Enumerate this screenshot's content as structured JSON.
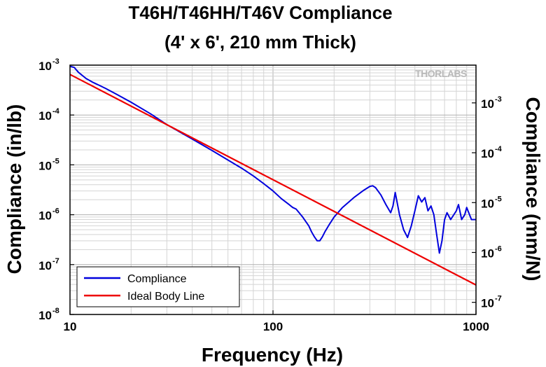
{
  "chart_data": {
    "type": "line",
    "title": "T46H/T46HH/T46V Compliance",
    "subtitle": "(4' x 6', 210 mm Thick)",
    "xlabel": "Frequency (Hz)",
    "ylabel": "Compliance (in/lb)",
    "ylabel_right": "Compliance (mm/N)",
    "x_scale": "log",
    "y_scale": "log",
    "xlim": [
      10,
      1000
    ],
    "ylim": [
      1e-08,
      0.001
    ],
    "grid": true,
    "legend_position": "bottom-left",
    "watermark": "THORLABS",
    "x_ticks": [
      {
        "value": 10,
        "label": "10"
      },
      {
        "value": 100,
        "label": "100"
      },
      {
        "value": 1000,
        "label": "1000"
      }
    ],
    "y_ticks_left": [
      {
        "value": 1e-08,
        "base": "10",
        "exp": "-8"
      },
      {
        "value": 1e-07,
        "base": "10",
        "exp": "-7"
      },
      {
        "value": 1e-06,
        "base": "10",
        "exp": "-6"
      },
      {
        "value": 1e-05,
        "base": "10",
        "exp": "-5"
      },
      {
        "value": 0.0001,
        "base": "10",
        "exp": "-4"
      },
      {
        "value": 0.001,
        "base": "10",
        "exp": "-3"
      }
    ],
    "y_ticks_right": [
      {
        "value": 1e-07,
        "base": "10",
        "exp": "-7"
      },
      {
        "value": 1e-06,
        "base": "10",
        "exp": "-6"
      },
      {
        "value": 1e-05,
        "base": "10",
        "exp": "-5"
      },
      {
        "value": 0.0001,
        "base": "10",
        "exp": "-4"
      },
      {
        "value": 0.001,
        "base": "10",
        "exp": "-3"
      }
    ],
    "right_axis_factor": 5.71,
    "series": [
      {
        "name": "Compliance",
        "color": "#0000dd",
        "x": [
          10,
          10.5,
          11,
          12,
          13,
          14,
          15,
          17,
          20,
          25,
          30,
          40,
          50,
          60,
          70,
          80,
          90,
          100,
          110,
          120,
          125,
          130,
          140,
          150,
          155,
          160,
          165,
          170,
          175,
          180,
          190,
          200,
          220,
          250,
          280,
          300,
          310,
          320,
          340,
          360,
          380,
          390,
          400,
          420,
          440,
          460,
          480,
          500,
          520,
          540,
          560,
          580,
          600,
          620,
          640,
          660,
          680,
          700,
          720,
          750,
          800,
          820,
          850,
          880,
          900,
          950,
          1000
        ],
        "y": [
          0.00095,
          0.0009,
          0.00072,
          0.00054,
          0.00045,
          0.00039,
          0.00034,
          0.00026,
          0.00018,
          0.000105,
          6.4e-05,
          3.3e-05,
          1.95e-05,
          1.25e-05,
          8.6e-06,
          6e-06,
          4.2e-06,
          3e-06,
          2.1e-06,
          1.6e-06,
          1.4e-06,
          1.3e-06,
          9e-07,
          6e-07,
          4.5e-07,
          3.6e-07,
          3e-07,
          3e-07,
          3.6e-07,
          4.5e-07,
          6.5e-07,
          9e-07,
          1.4e-06,
          2.2e-06,
          3.1e-06,
          3.7e-06,
          3.8e-06,
          3.5e-06,
          2.5e-06,
          1.6e-06,
          1.1e-06,
          1.5e-06,
          2.8e-06,
          1e-06,
          5e-07,
          3.5e-07,
          6e-07,
          1.2e-06,
          2.4e-06,
          1.8e-06,
          2.2e-06,
          1.2e-06,
          1.5e-06,
          1e-06,
          4e-07,
          1.7e-07,
          3e-07,
          8e-07,
          1.1e-06,
          8e-07,
          1.2e-06,
          1.6e-06,
          8e-07,
          1e-06,
          1.4e-06,
          8e-07,
          8e-07
        ]
      },
      {
        "name": "Ideal Body Line",
        "color": "#ee0000",
        "x": [
          10,
          1000
        ],
        "y": [
          0.00065,
          3.9e-08
        ]
      }
    ]
  }
}
